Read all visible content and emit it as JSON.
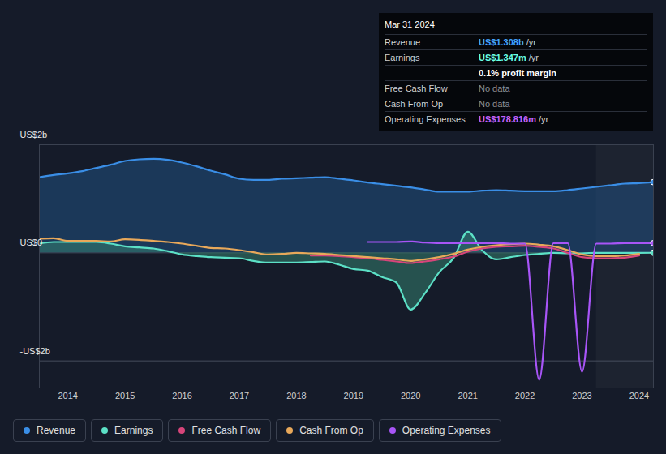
{
  "chart_data": {
    "type": "line",
    "x": [
      2013.5,
      2013.75,
      2014,
      2014.25,
      2014.5,
      2014.75,
      2015,
      2015.25,
      2015.5,
      2015.75,
      2016,
      2016.25,
      2016.5,
      2016.75,
      2017,
      2017.25,
      2017.5,
      2017.75,
      2018,
      2018.25,
      2018.5,
      2018.75,
      2019,
      2019.25,
      2019.5,
      2019.75,
      2020,
      2020.25,
      2020.5,
      2020.75,
      2021,
      2021.25,
      2021.5,
      2021.75,
      2022,
      2022.25,
      2022.5,
      2022.75,
      2023,
      2023.25,
      2023.5,
      2023.75,
      2024,
      2024.25
    ],
    "xlim": [
      2013.5,
      2024.25
    ],
    "xticks": [
      2014,
      2015,
      2016,
      2017,
      2018,
      2019,
      2020,
      2021,
      2022,
      2023,
      2024
    ],
    "ylim": [
      -2.5,
      2
    ],
    "yticks": [
      {
        "value": 2,
        "label": "US$2b"
      },
      {
        "value": 0,
        "label": "US$0"
      },
      {
        "value": -2,
        "label": "-US$2b"
      }
    ],
    "grid": true,
    "highlight": [
      2023.25,
      2024.25
    ],
    "series": [
      {
        "name": "Revenue",
        "type": "area",
        "color": "#3a8ee6",
        "values": [
          1.4,
          1.44,
          1.47,
          1.51,
          1.57,
          1.63,
          1.7,
          1.73,
          1.74,
          1.72,
          1.67,
          1.6,
          1.52,
          1.45,
          1.37,
          1.35,
          1.35,
          1.37,
          1.38,
          1.39,
          1.4,
          1.37,
          1.34,
          1.3,
          1.27,
          1.24,
          1.21,
          1.17,
          1.13,
          1.13,
          1.13,
          1.15,
          1.16,
          1.15,
          1.14,
          1.14,
          1.14,
          1.16,
          1.19,
          1.22,
          1.25,
          1.28,
          1.29,
          1.308
        ]
      },
      {
        "name": "Earnings",
        "type": "area",
        "color": "#5ce0c6",
        "values": [
          0.17,
          0.2,
          0.2,
          0.2,
          0.2,
          0.17,
          0.12,
          0.1,
          0.08,
          0.03,
          -0.03,
          -0.06,
          -0.08,
          -0.09,
          -0.1,
          -0.15,
          -0.18,
          -0.18,
          -0.18,
          -0.17,
          -0.16,
          -0.22,
          -0.3,
          -0.33,
          -0.45,
          -0.55,
          -1.05,
          -0.75,
          -0.36,
          -0.1,
          0.39,
          0.05,
          -0.12,
          -0.08,
          -0.04,
          -0.02,
          0.0,
          -0.01,
          -0.01,
          0.0,
          0.0,
          0.0,
          0.0,
          0.001347
        ]
      },
      {
        "name": "Free Cash Flow",
        "type": "line",
        "color": "#d6457a",
        "values": [
          null,
          null,
          null,
          null,
          null,
          null,
          null,
          null,
          null,
          null,
          null,
          null,
          null,
          null,
          null,
          null,
          null,
          null,
          null,
          -0.05,
          -0.05,
          -0.06,
          -0.08,
          -0.1,
          -0.13,
          -0.16,
          -0.19,
          -0.16,
          -0.12,
          -0.07,
          0.02,
          0.08,
          0.11,
          0.12,
          0.13,
          0.11,
          0.08,
          0.0,
          -0.08,
          -0.1,
          -0.1,
          -0.09,
          -0.05,
          null
        ]
      },
      {
        "name": "Cash From Op",
        "type": "line",
        "color": "#e8a85a",
        "values": [
          0.26,
          0.27,
          0.22,
          0.22,
          0.22,
          0.21,
          0.25,
          0.24,
          0.22,
          0.2,
          0.17,
          0.13,
          0.09,
          0.08,
          0.05,
          0.01,
          -0.03,
          -0.02,
          0.0,
          -0.01,
          -0.02,
          -0.04,
          -0.06,
          -0.08,
          -0.1,
          -0.12,
          -0.15,
          -0.12,
          -0.08,
          -0.02,
          0.06,
          0.11,
          0.14,
          0.16,
          0.17,
          0.15,
          0.12,
          0.05,
          -0.03,
          -0.06,
          -0.06,
          -0.05,
          -0.02,
          null
        ]
      },
      {
        "name": "Operating Expenses",
        "type": "line",
        "color": "#a855f7",
        "values": [
          null,
          null,
          null,
          null,
          null,
          null,
          null,
          null,
          null,
          null,
          null,
          null,
          null,
          null,
          null,
          null,
          null,
          null,
          null,
          null,
          null,
          null,
          null,
          0.2,
          0.2,
          0.2,
          0.21,
          0.19,
          0.18,
          0.18,
          0.18,
          0.18,
          0.18,
          0.17,
          0.17,
          -2.35,
          0.18,
          0.18,
          -2.2,
          0.17,
          0.17,
          0.18,
          0.18,
          0.178816
        ]
      }
    ],
    "tooltip": {
      "title": "Mar 31 2024",
      "rows": [
        {
          "label": "Revenue",
          "value": "US$1.308b",
          "unit": "/yr"
        },
        {
          "label": "Earnings",
          "value": "US$1.347m",
          "unit": "/yr"
        },
        {
          "note": "0.1% profit margin"
        },
        {
          "label": "Free Cash Flow",
          "value": "No data"
        },
        {
          "label": "Cash From Op",
          "value": "No data"
        },
        {
          "label": "Operating Expenses",
          "value": "US$178.816m",
          "unit": "/yr"
        }
      ]
    }
  }
}
